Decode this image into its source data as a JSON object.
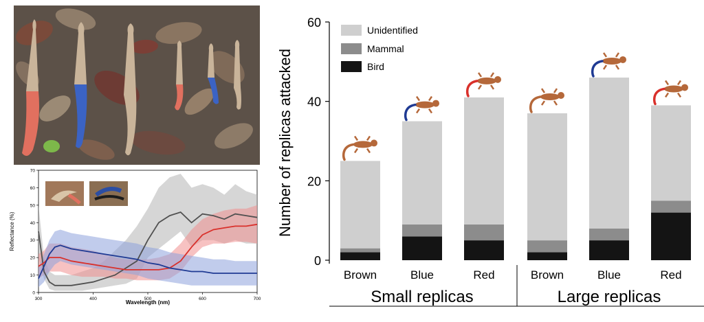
{
  "colors": {
    "unidentified": "#cfcfcf",
    "mammal": "#8c8c8c",
    "bird": "#141414",
    "lizard": "#b5683a",
    "blue_tail": "#1f3a93",
    "red_tail": "#d9302b",
    "brown_line": "#505050"
  },
  "photo": {
    "description_icons": [
      "leaf-litter-background",
      "clay-replica-red-tail",
      "clay-replica-blue-tail",
      "clay-replica-brown"
    ]
  },
  "chart_data": [
    {
      "type": "line",
      "xlabel": "Wavelength (nm)",
      "ylabel": "Reflectance (%)",
      "xlim": [
        300,
        700
      ],
      "ylim": [
        0,
        70
      ],
      "x_ticks": [
        "300",
        "400",
        "500",
        "600",
        "700"
      ],
      "y_ticks": [
        "0",
        "10",
        "20",
        "30",
        "40",
        "50",
        "60",
        "70"
      ],
      "x": [
        300,
        310,
        320,
        330,
        340,
        350,
        360,
        380,
        400,
        420,
        440,
        460,
        480,
        500,
        520,
        540,
        560,
        580,
        600,
        620,
        640,
        660,
        680,
        700
      ],
      "series": [
        {
          "key": "brown",
          "values": [
            35,
            12,
            6,
            4,
            4,
            4,
            4,
            5,
            6,
            8,
            10,
            14,
            18,
            30,
            40,
            44,
            46,
            40,
            45,
            44,
            42,
            45,
            44,
            43
          ],
          "band_low": [
            20,
            8,
            2,
            1,
            1,
            1,
            1,
            1,
            2,
            3,
            4,
            5,
            8,
            20,
            25,
            30,
            35,
            26,
            30,
            30,
            28,
            30,
            28,
            28
          ],
          "band_high": [
            50,
            20,
            12,
            10,
            10,
            10,
            10,
            12,
            14,
            18,
            24,
            30,
            38,
            48,
            60,
            66,
            68,
            60,
            62,
            60,
            56,
            62,
            58,
            56
          ]
        },
        {
          "key": "red",
          "values": [
            15,
            17,
            20,
            20,
            20,
            19,
            18,
            17,
            16,
            15,
            14,
            13,
            13,
            13,
            13,
            14,
            18,
            26,
            33,
            36,
            37,
            38,
            38,
            39
          ],
          "band_low": [
            8,
            10,
            12,
            12,
            12,
            11,
            10,
            9,
            9,
            9,
            8,
            8,
            7,
            7,
            7,
            8,
            12,
            20,
            26,
            28,
            28,
            29,
            29,
            28
          ],
          "band_high": [
            22,
            24,
            28,
            28,
            28,
            27,
            26,
            25,
            24,
            22,
            20,
            19,
            19,
            19,
            20,
            22,
            28,
            36,
            42,
            45,
            47,
            48,
            48,
            50
          ]
        },
        {
          "key": "blue",
          "values": [
            8,
            15,
            22,
            26,
            27,
            26,
            25,
            24,
            23,
            22,
            21,
            20,
            19,
            17,
            16,
            14,
            13,
            12,
            12,
            11,
            11,
            11,
            11,
            11
          ],
          "band_low": [
            3,
            6,
            12,
            16,
            18,
            17,
            16,
            15,
            14,
            13,
            12,
            11,
            10,
            8,
            7,
            6,
            5,
            4,
            4,
            4,
            4,
            4,
            4,
            4
          ],
          "band_high": [
            14,
            22,
            30,
            35,
            36,
            35,
            34,
            33,
            32,
            31,
            30,
            29,
            28,
            26,
            25,
            23,
            22,
            21,
            20,
            19,
            19,
            18,
            18,
            18
          ]
        }
      ]
    },
    {
      "type": "bar",
      "stacked": true,
      "ylabel": "Number of replicas attacked",
      "ylim": [
        0,
        60
      ],
      "y_ticks": [
        "0",
        "20",
        "40",
        "60"
      ],
      "categories": [
        "Brown",
        "Blue",
        "Red",
        "Brown",
        "Blue",
        "Red"
      ],
      "groups": [
        {
          "label": "Small replicas",
          "span": [
            0,
            2
          ]
        },
        {
          "label": "Large replicas",
          "span": [
            3,
            5
          ]
        }
      ],
      "tail_colors": [
        "brown",
        "blue",
        "red",
        "brown",
        "blue",
        "red"
      ],
      "series": [
        {
          "name": "Bird",
          "key": "bird",
          "values": [
            2,
            6,
            5,
            2,
            5,
            12
          ]
        },
        {
          "name": "Mammal",
          "key": "mammal",
          "values": [
            1,
            3,
            4,
            3,
            3,
            3
          ]
        },
        {
          "name": "Unidentified",
          "key": "unidentified",
          "values": [
            22,
            26,
            32,
            32,
            38,
            24
          ]
        }
      ],
      "legend": {
        "position": "top-left",
        "items": [
          {
            "label": "Unidentified",
            "key": "unidentified"
          },
          {
            "label": "Mammal",
            "key": "mammal"
          },
          {
            "label": "Bird",
            "key": "bird"
          }
        ]
      }
    }
  ]
}
